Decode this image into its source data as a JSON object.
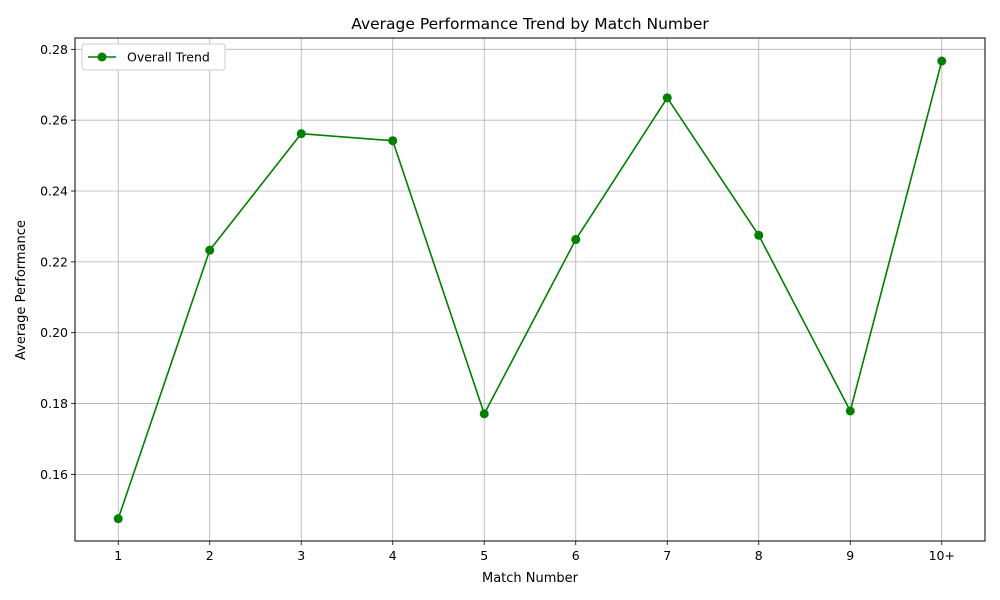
{
  "chart_data": {
    "type": "line",
    "title": "Average Performance Trend by Match Number",
    "xlabel": "Match Number",
    "ylabel": "Average Performance",
    "categories": [
      "1",
      "2",
      "3",
      "4",
      "5",
      "6",
      "7",
      "8",
      "9",
      "10+"
    ],
    "series": [
      {
        "name": "Overall Trend",
        "color": "#008000",
        "marker": "circle",
        "values": [
          0.1475,
          0.2233,
          0.2562,
          0.2542,
          0.1771,
          0.2263,
          0.2663,
          0.2275,
          0.1779,
          0.2767
        ]
      }
    ],
    "ylim": [
      0.1412,
      0.2832
    ],
    "yticks": [
      0.16,
      0.18,
      0.2,
      0.22,
      0.24,
      0.26,
      0.28
    ],
    "ytick_labels": [
      "0.16",
      "0.18",
      "0.20",
      "0.22",
      "0.24",
      "0.26",
      "0.28"
    ],
    "grid": true,
    "legend_position": "top-left"
  }
}
